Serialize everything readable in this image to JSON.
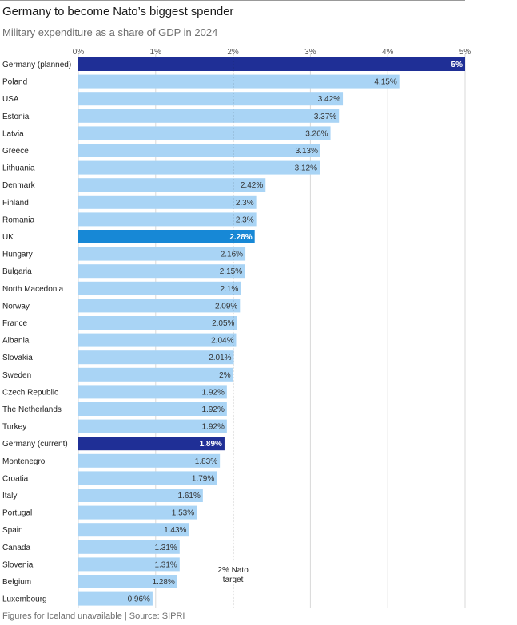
{
  "chart_data": {
    "type": "bar",
    "orientation": "horizontal",
    "title": "Germany to become Nato’s biggest spender",
    "subtitle": "Military expenditure as a share of GDP in 2024",
    "xlim": [
      0,
      5
    ],
    "x_ticks": [
      "0%",
      "1%",
      "2%",
      "3%",
      "4%",
      "5%"
    ],
    "grid": true,
    "reference_line": {
      "value": 2,
      "label_lines": [
        "2% Nato",
        "target"
      ]
    },
    "categories": [
      "Germany (planned)",
      "Poland",
      "USA",
      "Estonia",
      "Latvia",
      "Greece",
      "Lithuania",
      "Denmark",
      "Finland",
      "Romania",
      "UK",
      "Hungary",
      "Bulgaria",
      "North Macedonia",
      "Norway",
      "France",
      "Albania",
      "Slovakia",
      "Sweden",
      "Czech Republic",
      "The Netherlands",
      "Turkey",
      "Germany (current)",
      "Montenegro",
      "Croatia",
      "Italy",
      "Portugal",
      "Spain",
      "Canada",
      "Slovenia",
      "Belgium",
      "Luxembourg"
    ],
    "values": [
      5,
      4.15,
      3.42,
      3.37,
      3.26,
      3.13,
      3.12,
      2.42,
      2.3,
      2.3,
      2.28,
      2.16,
      2.15,
      2.1,
      2.09,
      2.05,
      2.04,
      2.01,
      2,
      1.92,
      1.92,
      1.92,
      1.89,
      1.83,
      1.79,
      1.61,
      1.53,
      1.43,
      1.31,
      1.31,
      1.28,
      0.96
    ],
    "value_labels": [
      "5%",
      "4.15%",
      "3.42%",
      "3.37%",
      "3.26%",
      "3.13%",
      "3.12%",
      "2.42%",
      "2.3%",
      "2.3%",
      "2.28%",
      "2.16%",
      "2.15%",
      "2.1%",
      "2.09%",
      "2.05%",
      "2.04%",
      "2.01%",
      "2%",
      "1.92%",
      "1.92%",
      "1.92%",
      "1.89%",
      "1.83%",
      "1.79%",
      "1.61%",
      "1.53%",
      "1.43%",
      "1.31%",
      "1.31%",
      "1.28%",
      "0.96%"
    ],
    "colors": {
      "default": "#a9d4f5",
      "germany": "#1f2f96",
      "uk": "#1788d6",
      "text_on_dark": "#ffffff"
    },
    "highlight": {
      "Germany (planned)": "germany",
      "Germany (current)": "germany",
      "UK": "uk"
    }
  },
  "footer": {
    "source": "Figures for Iceland unavailable | Source: SIPRI"
  }
}
